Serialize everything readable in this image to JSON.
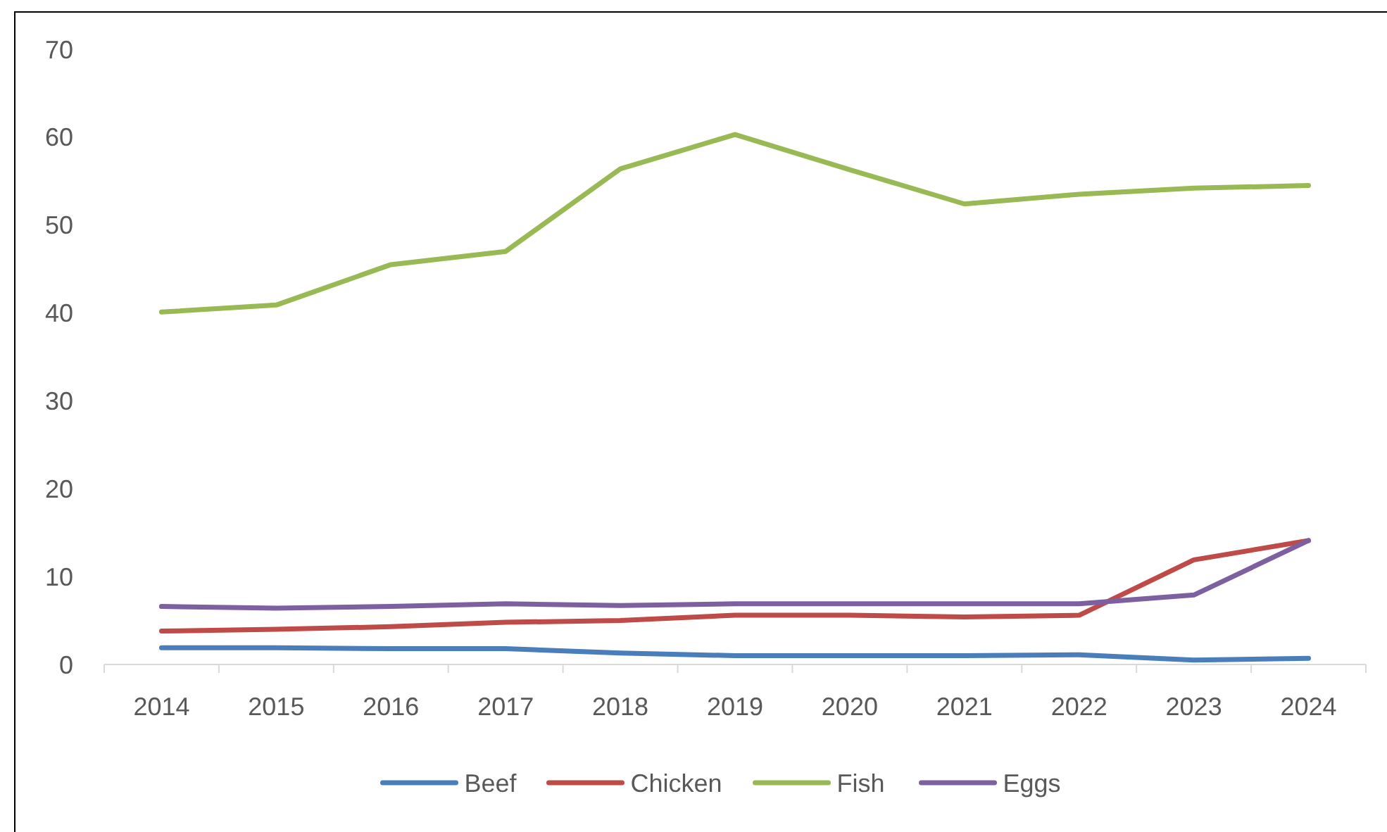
{
  "chart_data": {
    "type": "line",
    "categories": [
      "2014",
      "2015",
      "2016",
      "2017",
      "2018",
      "2019",
      "2020",
      "2021",
      "2022",
      "2023",
      "2024"
    ],
    "series": [
      {
        "name": "Beef",
        "color": "#4a7ebb",
        "values": [
          1.9,
          1.9,
          1.8,
          1.8,
          1.3,
          1.0,
          1.0,
          1.0,
          1.1,
          0.5,
          0.7
        ]
      },
      {
        "name": "Chicken",
        "color": "#be4b48",
        "values": [
          3.8,
          4.0,
          4.3,
          4.8,
          5.0,
          5.6,
          5.6,
          5.4,
          5.6,
          11.9,
          14.1
        ]
      },
      {
        "name": "Fish",
        "color": "#98b954",
        "values": [
          40.1,
          40.9,
          45.5,
          47.0,
          56.4,
          60.3,
          56.3,
          52.4,
          53.5,
          54.2,
          54.5
        ]
      },
      {
        "name": "Eggs",
        "color": "#7d60a0",
        "values": [
          6.6,
          6.4,
          6.6,
          6.9,
          6.7,
          6.9,
          6.9,
          6.9,
          6.9,
          7.9,
          14.1
        ]
      }
    ],
    "ylim": [
      0,
      70
    ],
    "yticks": [
      0,
      10,
      20,
      30,
      40,
      50,
      60,
      70
    ],
    "grid": false,
    "legend": "bottom",
    "marker": "none",
    "line_style": "solid"
  }
}
